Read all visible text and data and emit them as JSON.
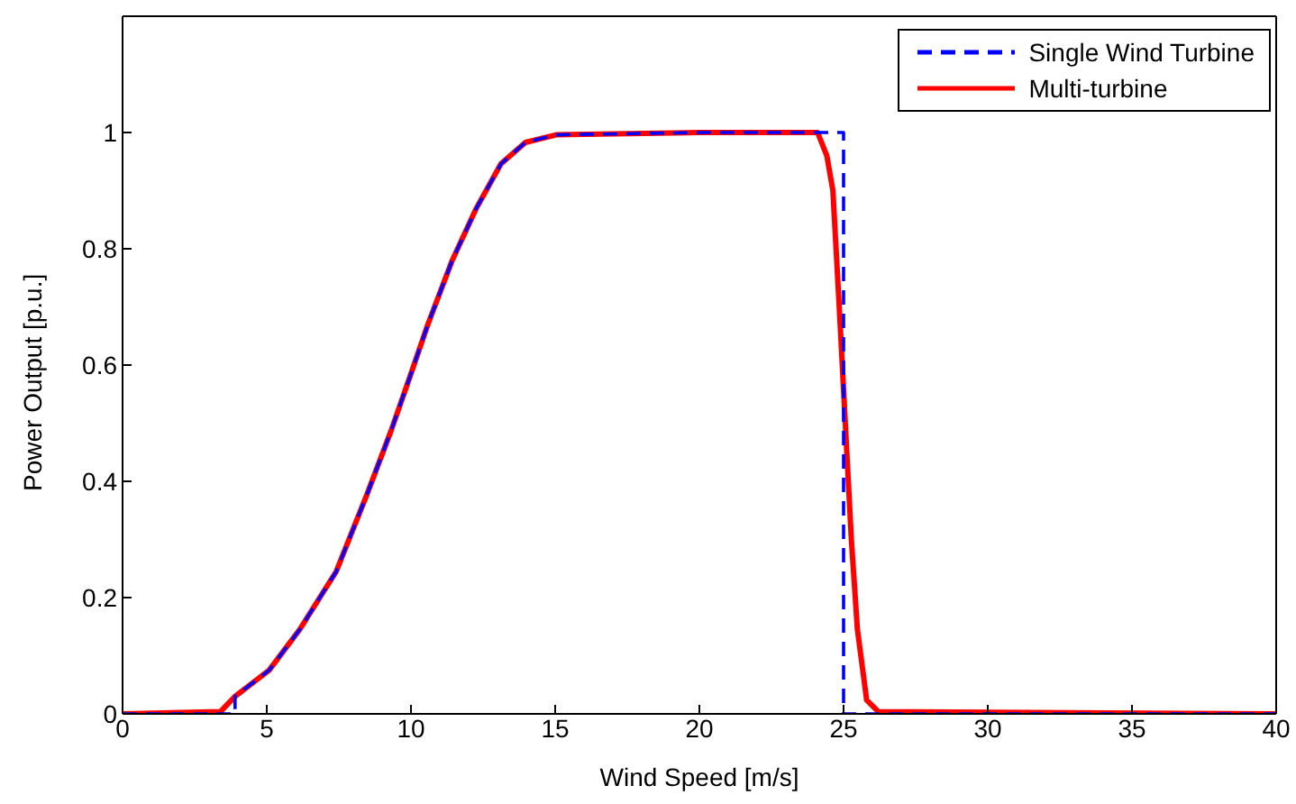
{
  "chart_data": {
    "type": "line",
    "xlabel": "Wind Speed [m/s]",
    "ylabel": "Power Output [p.u.]",
    "xlim": [
      0,
      40
    ],
    "xticks": [
      0,
      5,
      10,
      15,
      20,
      25,
      30,
      35,
      40
    ],
    "ylim": [
      0,
      1.2
    ],
    "yticks": [
      0,
      0.2,
      0.4,
      0.6,
      0.8,
      1
    ],
    "grid": false,
    "legend": "top right",
    "marker": "none",
    "series": [
      {
        "name": "Single Wind Turbine",
        "color": "#0000ff",
        "line_style": "dashed",
        "x": [
          0,
          3.9,
          3.9,
          5.08,
          6.14,
          7.41,
          8.47,
          9.31,
          9.95,
          10.58,
          11.43,
          12.27,
          13.12,
          13.97,
          15.03,
          20,
          25,
          25,
          40
        ],
        "values": [
          0,
          0,
          0.03,
          0.075,
          0.145,
          0.245,
          0.377,
          0.487,
          0.578,
          0.669,
          0.78,
          0.87,
          0.946,
          0.983,
          0.996,
          1,
          1,
          0,
          0
        ]
      },
      {
        "name": "Multi-turbine",
        "color": "#ff0000",
        "line_style": "solid",
        "x": [
          0,
          3.4,
          3.9,
          5.08,
          6.14,
          7.41,
          8.47,
          9.31,
          9.95,
          10.58,
          11.43,
          12.27,
          13.12,
          13.97,
          15.03,
          20,
          24.1,
          24.42,
          24.63,
          24.85,
          25.06,
          25.27,
          25.48,
          25.8,
          26.2,
          40
        ],
        "values": [
          0,
          0.004,
          0.03,
          0.075,
          0.145,
          0.245,
          0.377,
          0.487,
          0.578,
          0.669,
          0.78,
          0.87,
          0.946,
          0.983,
          0.996,
          1,
          1,
          0.96,
          0.9,
          0.7,
          0.5,
          0.3,
          0.145,
          0.024,
          0.004,
          0
        ]
      }
    ]
  }
}
